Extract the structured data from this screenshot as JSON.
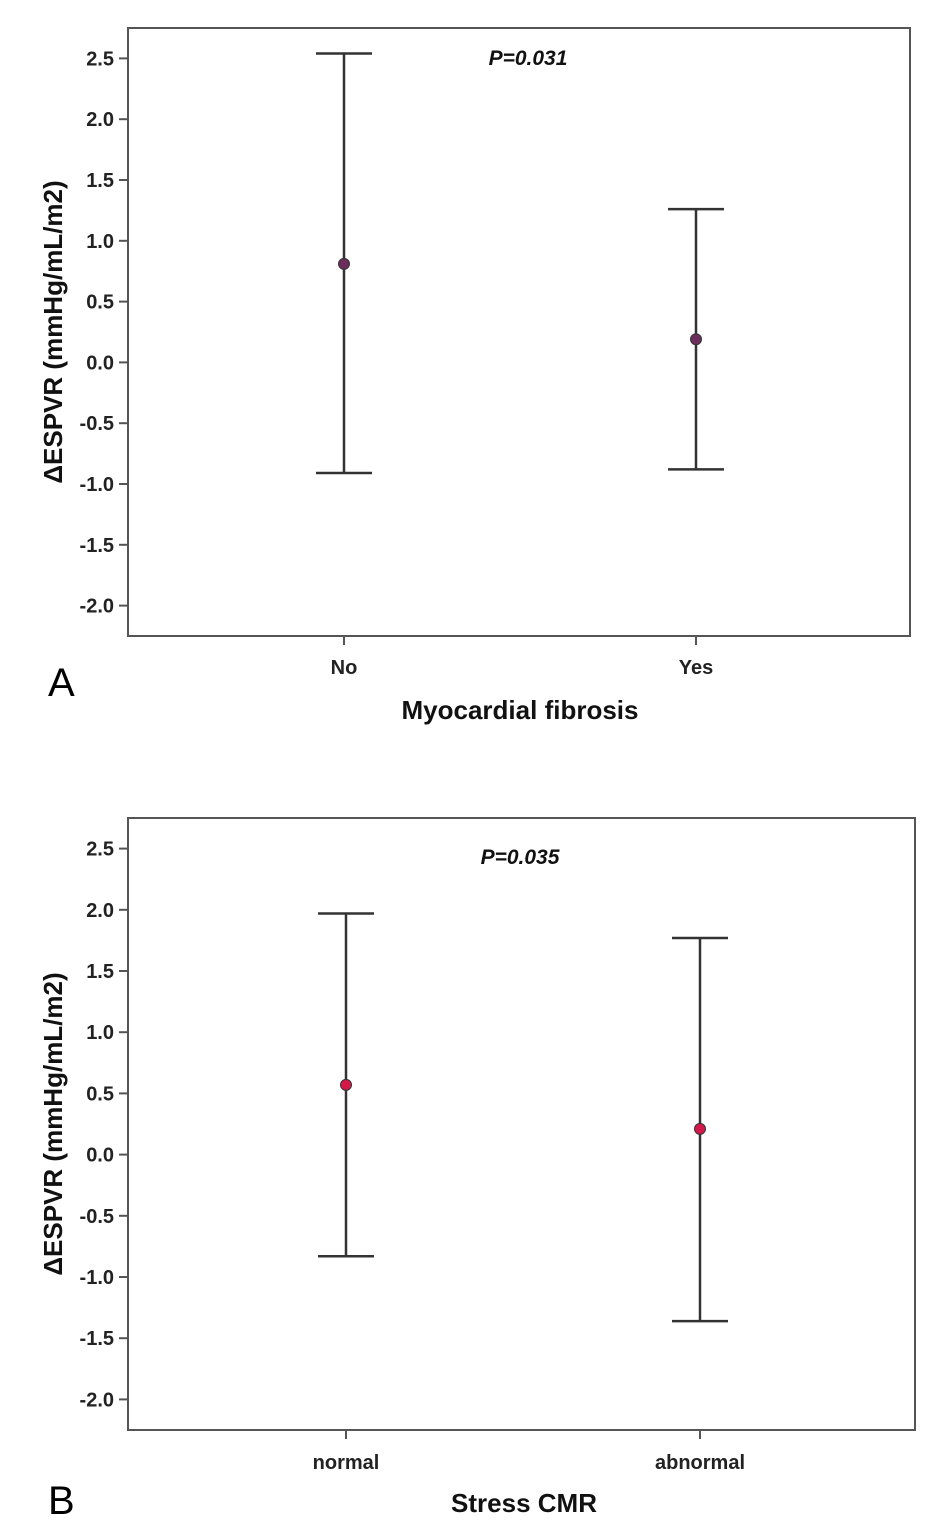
{
  "chart_data": [
    {
      "type": "errorbar",
      "panel_label": "A",
      "annotation": "P=0.031",
      "xlabel": "Myocardial fibrosis",
      "ylabel": "ΔESPVR (mmHg/mL/m2)",
      "ylim": [
        -2.25,
        2.75
      ],
      "yticks": [
        "2.5",
        "2.0",
        "1.5",
        "1.0",
        "0.5",
        "0.0",
        "-0.5",
        "-1.0",
        "-1.5",
        "-2.0"
      ],
      "categories": [
        "No",
        "Yes"
      ],
      "mean": [
        0.81,
        0.19
      ],
      "upper": [
        2.54,
        1.26
      ],
      "lower": [
        -0.91,
        -0.88
      ],
      "marker_color": "#6b2d5c",
      "grid": false
    },
    {
      "type": "errorbar",
      "panel_label": "B",
      "annotation": "P=0.035",
      "xlabel": "Stress CMR",
      "ylabel": "ΔESPVR (mmHg/mL/m2)",
      "ylim": [
        -2.25,
        2.75
      ],
      "yticks": [
        "2.5",
        "2.0",
        "1.5",
        "1.0",
        "0.5",
        "0.0",
        "-0.5",
        "-1.0",
        "-1.5",
        "-2.0"
      ],
      "categories": [
        "normal",
        "abnormal"
      ],
      "mean": [
        0.57,
        0.21
      ],
      "upper": [
        1.97,
        1.77
      ],
      "lower": [
        -0.83,
        -1.36
      ],
      "marker_color": "#d4184a",
      "grid": false
    }
  ]
}
